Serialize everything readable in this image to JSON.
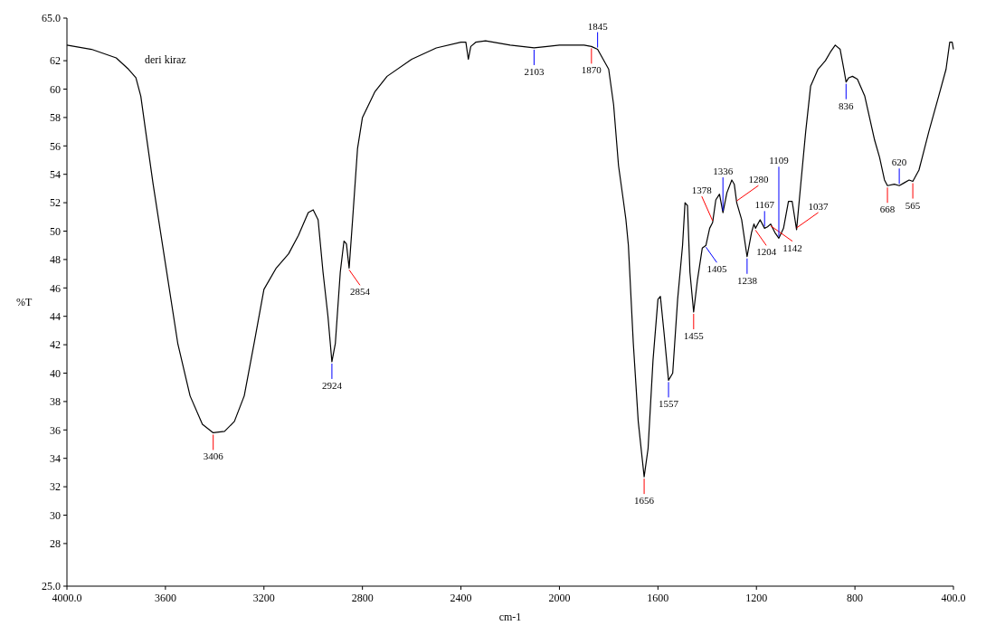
{
  "chart_data": {
    "type": "line",
    "xlabel": "cm-1",
    "ylabel": "%T",
    "xlim": [
      4000,
      400
    ],
    "ylim": [
      25,
      65
    ],
    "xticks": [
      {
        "value": 4000,
        "label": "4000.0"
      },
      3600,
      3200,
      2800,
      2400,
      2000,
      1600,
      1200,
      800,
      {
        "value": 400,
        "label": "400.0"
      }
    ],
    "yticks": [
      {
        "value": 25,
        "label": "25.0"
      },
      28,
      30,
      32,
      34,
      36,
      38,
      40,
      42,
      44,
      46,
      48,
      50,
      52,
      54,
      56,
      58,
      60,
      62,
      {
        "value": 65,
        "label": "65.0"
      }
    ],
    "grid": false,
    "x": [
      4000,
      3900,
      3800,
      3750,
      3720,
      3700,
      3680,
      3650,
      3600,
      3550,
      3500,
      3450,
      3406,
      3360,
      3320,
      3280,
      3240,
      3200,
      3150,
      3100,
      3060,
      3020,
      3000,
      2980,
      2960,
      2940,
      2924,
      2910,
      2890,
      2875,
      2865,
      2854,
      2840,
      2820,
      2800,
      2750,
      2700,
      2600,
      2500,
      2400,
      2380,
      2370,
      2360,
      2340,
      2300,
      2200,
      2103,
      2050,
      2000,
      1900,
      1870,
      1845,
      1800,
      1780,
      1760,
      1740,
      1730,
      1720,
      1700,
      1680,
      1656,
      1640,
      1620,
      1600,
      1590,
      1575,
      1557,
      1540,
      1520,
      1500,
      1490,
      1480,
      1470,
      1455,
      1440,
      1420,
      1405,
      1390,
      1378,
      1365,
      1350,
      1336,
      1320,
      1300,
      1290,
      1280,
      1260,
      1238,
      1220,
      1210,
      1204,
      1185,
      1167,
      1155,
      1142,
      1125,
      1109,
      1090,
      1070,
      1055,
      1037,
      1020,
      1000,
      980,
      950,
      920,
      900,
      880,
      860,
      845,
      836,
      825,
      810,
      790,
      760,
      720,
      700,
      680,
      668,
      640,
      620,
      600,
      580,
      565,
      540,
      500,
      460,
      430,
      415,
      405,
      400
    ],
    "series": [
      {
        "name": "deri kiraz",
        "color": "#000000",
        "values": [
          63.1,
          62.8,
          62.2,
          61.4,
          60.8,
          59.5,
          57.0,
          53.3,
          47.7,
          42.1,
          38.4,
          36.4,
          35.8,
          35.9,
          36.6,
          38.4,
          42.1,
          45.9,
          47.4,
          48.4,
          49.7,
          51.3,
          51.5,
          50.8,
          47.1,
          44.0,
          40.8,
          42.1,
          47.1,
          49.3,
          49.1,
          47.4,
          50.8,
          55.8,
          58.0,
          59.8,
          60.9,
          62.1,
          62.9,
          63.3,
          63.3,
          62.1,
          63.0,
          63.3,
          63.4,
          63.1,
          62.9,
          63.0,
          63.1,
          63.1,
          63.0,
          62.8,
          61.4,
          58.9,
          54.6,
          52.1,
          50.8,
          49.0,
          42.1,
          36.6,
          32.7,
          34.7,
          40.9,
          45.2,
          45.4,
          42.8,
          39.5,
          40.0,
          45.2,
          49.0,
          52.0,
          51.8,
          47.1,
          44.3,
          46.5,
          48.8,
          49.0,
          50.2,
          50.6,
          52.2,
          52.6,
          51.3,
          52.7,
          53.6,
          53.3,
          52.0,
          50.8,
          48.2,
          49.9,
          50.5,
          50.2,
          50.8,
          50.2,
          50.3,
          50.5,
          49.9,
          49.5,
          50.2,
          52.1,
          52.1,
          50.1,
          53.3,
          57.0,
          60.2,
          61.4,
          62.0,
          62.6,
          63.1,
          62.8,
          61.4,
          60.5,
          60.8,
          60.9,
          60.7,
          59.5,
          56.4,
          55.2,
          53.6,
          53.2,
          53.3,
          53.2,
          53.4,
          53.6,
          53.5,
          54.3,
          57.0,
          59.5,
          61.4,
          63.3,
          63.3,
          62.8
        ]
      }
    ],
    "annotations": [
      {
        "text": "3406",
        "x": 3406,
        "y": 35.8
      },
      {
        "text": "2924",
        "x": 2924,
        "y": 40.8
      },
      {
        "text": "2854",
        "x": 2854,
        "y": 47.4
      },
      {
        "text": "2103",
        "x": 2103,
        "y": 62.9
      },
      {
        "text": "1870",
        "x": 1870,
        "y": 63.0
      },
      {
        "text": "1845",
        "x": 1845,
        "y": 62.8
      },
      {
        "text": "1656",
        "x": 1656,
        "y": 32.7
      },
      {
        "text": "1557",
        "x": 1557,
        "y": 39.5
      },
      {
        "text": "1455",
        "x": 1455,
        "y": 44.3
      },
      {
        "text": "1405",
        "x": 1405,
        "y": 49.0
      },
      {
        "text": "1378",
        "x": 1378,
        "y": 50.6
      },
      {
        "text": "1336",
        "x": 1336,
        "y": 51.3
      },
      {
        "text": "1280",
        "x": 1280,
        "y": 52.0
      },
      {
        "text": "1238",
        "x": 1238,
        "y": 48.2
      },
      {
        "text": "1204",
        "x": 1204,
        "y": 50.2
      },
      {
        "text": "1167",
        "x": 1167,
        "y": 50.2
      },
      {
        "text": "1142",
        "x": 1142,
        "y": 50.5
      },
      {
        "text": "1109",
        "x": 1109,
        "y": 49.5
      },
      {
        "text": "1037",
        "x": 1037,
        "y": 50.1
      },
      {
        "text": "836",
        "x": 836,
        "y": 60.5
      },
      {
        "text": "668",
        "x": 668,
        "y": 53.2
      },
      {
        "text": "620",
        "x": 620,
        "y": 53.2
      },
      {
        "text": "565",
        "x": 565,
        "y": 53.5
      }
    ]
  }
}
